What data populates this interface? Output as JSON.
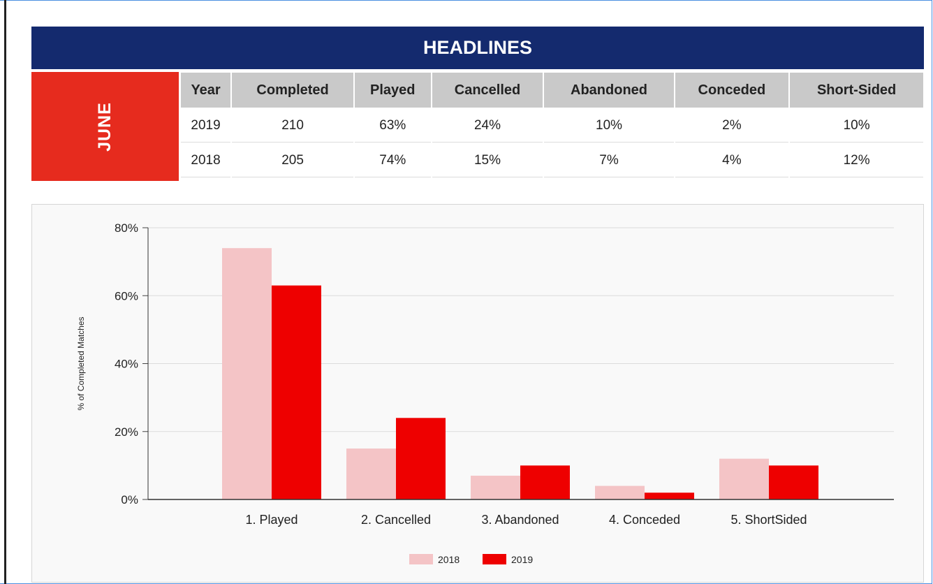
{
  "header": {
    "title": "HEADLINES",
    "month": "JUNE"
  },
  "table": {
    "columns": [
      "Year",
      "Completed",
      "Played",
      "Cancelled",
      "Abandoned",
      "Conceded",
      "Short-Sided"
    ],
    "rows": [
      [
        "2019",
        "210",
        "63%",
        "24%",
        "10%",
        "2%",
        "10%"
      ],
      [
        "2018",
        "205",
        "74%",
        "15%",
        "7%",
        "4%",
        "12%"
      ]
    ]
  },
  "colors": {
    "header_bg": "#142a6e",
    "month_bg": "#e62b1e",
    "series_2018": "#f4c4c6",
    "series_2019": "#ee0000"
  },
  "chart_data": {
    "type": "bar",
    "title": "",
    "xlabel": "",
    "ylabel": "% of Completed Matches",
    "categories": [
      "1. Played",
      "2. Cancelled",
      "3. Abandoned",
      "4. Conceded",
      "5. ShortSided"
    ],
    "series": [
      {
        "name": "2018",
        "values": [
          74,
          15,
          7,
          4,
          12
        ]
      },
      {
        "name": "2019",
        "values": [
          63,
          24,
          10,
          2,
          10
        ]
      }
    ],
    "ylim": [
      0,
      80
    ],
    "yticks": [
      0,
      20,
      40,
      60,
      80
    ],
    "ytick_labels": [
      "0%",
      "20%",
      "40%",
      "60%",
      "80%"
    ],
    "grid": true,
    "legend_position": "bottom-center"
  }
}
